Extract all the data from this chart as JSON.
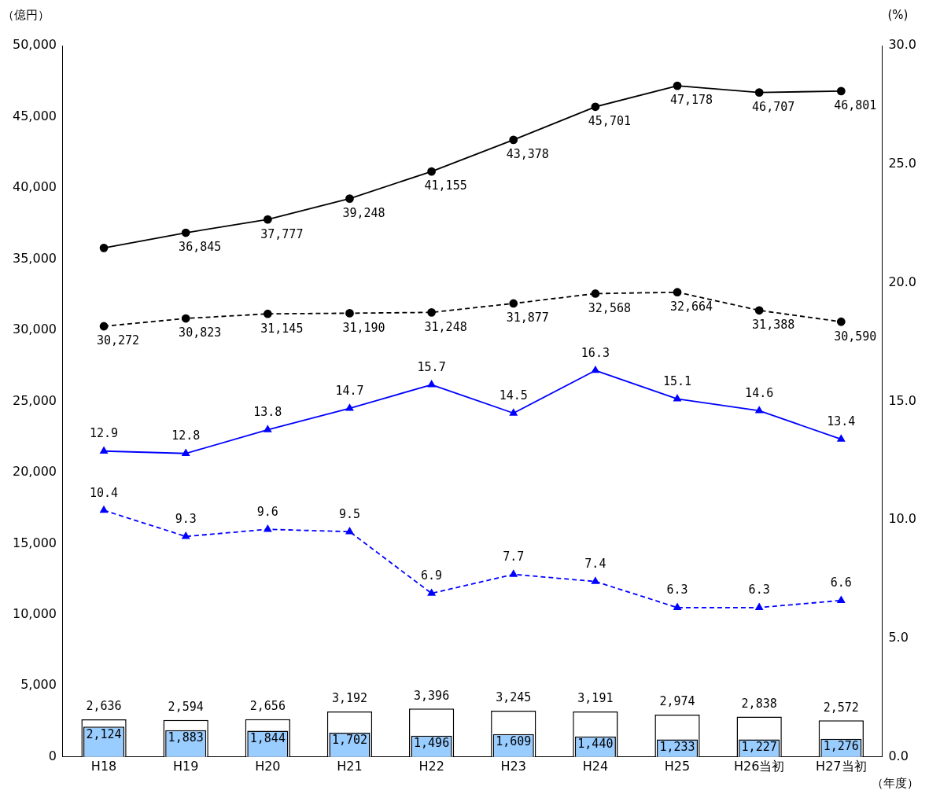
{
  "chart_data": {
    "type": "line",
    "ylabel": "（億円）",
    "y2label": "(%)",
    "xlabel": "（年度）",
    "categories": [
      "H18",
      "H19",
      "H20",
      "H21",
      "H22",
      "H23",
      "H24",
      "H25",
      "H26当初",
      "H27当初"
    ],
    "series": [
      {
        "type": "bar",
        "color": "#ffffff",
        "values": [
          2636,
          2594,
          2656,
          3192,
          3396,
          3245,
          3191,
          2974,
          2838,
          2572
        ],
        "value_labels": [
          "2,636",
          "2,594",
          "2,656",
          "3,192",
          "3,396",
          "3,245",
          "3,191",
          "2,974",
          "2,838",
          "2,572"
        ]
      },
      {
        "type": "bar",
        "color": "#99ccff",
        "values": [
          2124,
          1883,
          1844,
          1702,
          1496,
          1609,
          1440,
          1233,
          1227,
          1276
        ],
        "value_labels": [
          "2,124",
          "1,883",
          "1,844",
          "1,702",
          "1,496",
          "1,609",
          "1,440",
          "1,233",
          "1,227",
          "1,276"
        ]
      },
      {
        "color": "#000000",
        "marker": "circle",
        "line_style": "solid",
        "values": [
          35780,
          36845,
          37777,
          39248,
          41155,
          43378,
          45701,
          47178,
          46707,
          46801
        ],
        "value_labels": [
          null,
          "36,845",
          "37,777",
          "39,248",
          "41,155",
          "43,378",
          "45,701",
          "47,178",
          "46,707",
          "46,801"
        ]
      },
      {
        "color": "#000000",
        "marker": "circle",
        "line_style": "dashed",
        "values": [
          30272,
          30823,
          31145,
          31190,
          31248,
          31877,
          32568,
          32664,
          31388,
          30590
        ],
        "value_labels": [
          "30,272",
          "30,823",
          "31,145",
          "31,190",
          "31,248",
          "31,877",
          "32,568",
          "32,664",
          "31,388",
          "30,590"
        ]
      },
      {
        "axis": "y2",
        "color": "#0000ff",
        "marker": "triangle",
        "line_style": "solid",
        "values": [
          12.9,
          12.8,
          13.8,
          14.7,
          15.7,
          14.5,
          16.3,
          15.1,
          14.6,
          13.4
        ],
        "value_labels": [
          "12.9",
          "12.8",
          "13.8",
          "14.7",
          "15.7",
          "14.5",
          "16.3",
          "15.1",
          "14.6",
          "13.4"
        ]
      },
      {
        "axis": "y2",
        "color": "#0000ff",
        "marker": "triangle",
        "line_style": "dashed",
        "values": [
          10.4,
          9.3,
          9.6,
          9.5,
          6.9,
          7.7,
          7.4,
          6.3,
          6.3,
          6.6
        ],
        "value_labels": [
          "10.4",
          "9.3",
          "9.6",
          "9.5",
          "6.9",
          "7.7",
          "7.4",
          "6.3",
          "6.3",
          "6.6"
        ]
      }
    ],
    "ylim": [
      0,
      50000
    ],
    "yticks": [
      {
        "value": 0,
        "label": "0"
      },
      {
        "value": 5000,
        "label": "5,000"
      },
      {
        "value": 10000,
        "label": "10,000"
      },
      {
        "value": 15000,
        "label": "15,000"
      },
      {
        "value": 20000,
        "label": "20,000"
      },
      {
        "value": 25000,
        "label": "25,000"
      },
      {
        "value": 30000,
        "label": "30,000"
      },
      {
        "value": 35000,
        "label": "35,000"
      },
      {
        "value": 40000,
        "label": "40,000"
      },
      {
        "value": 45000,
        "label": "45,000"
      },
      {
        "value": 50000,
        "label": "50,000"
      }
    ],
    "y2lim": [
      0,
      30
    ],
    "y2ticks": [
      {
        "value": 0,
        "label": "0.0"
      },
      {
        "value": 5,
        "label": "5.0"
      },
      {
        "value": 10,
        "label": "10.0"
      },
      {
        "value": 15,
        "label": "15.0"
      },
      {
        "value": 20,
        "label": "20.0"
      },
      {
        "value": 25,
        "label": "25.0"
      },
      {
        "value": 30,
        "label": "30.0"
      }
    ],
    "grid": false,
    "legend": false
  }
}
